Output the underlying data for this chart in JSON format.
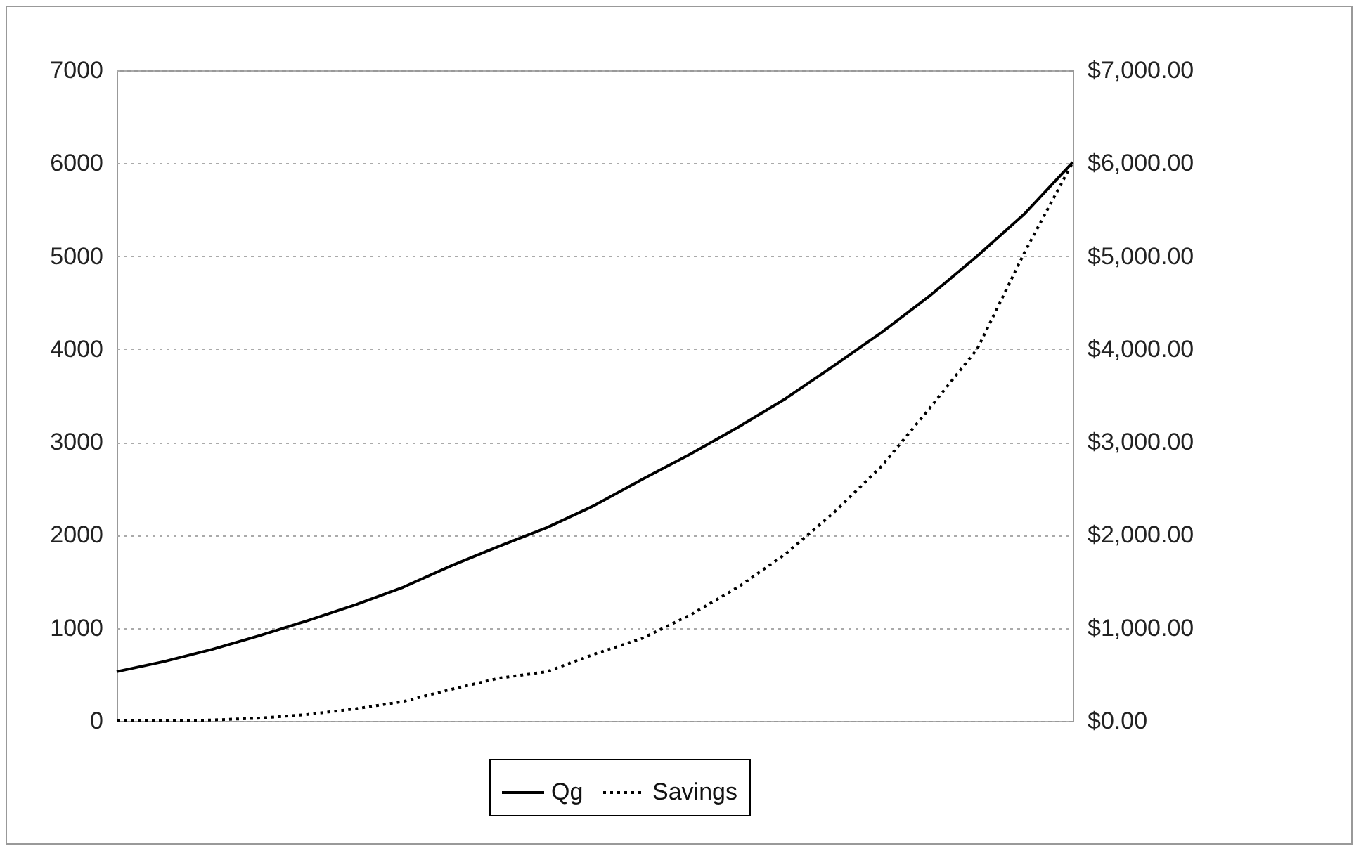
{
  "chart_data": {
    "type": "line",
    "categories": [
      null,
      null,
      null,
      null,
      null,
      null,
      null,
      null,
      null,
      null,
      null,
      null,
      null,
      null,
      null,
      null,
      null,
      null,
      null,
      null,
      null
    ],
    "series": [
      {
        "name": "Qg",
        "color": "#000000",
        "line_style": "solid",
        "values": [
          530,
          640,
          770,
          920,
          1080,
          1250,
          1440,
          1670,
          1880,
          2080,
          2320,
          2600,
          2870,
          3160,
          3470,
          3820,
          4180,
          4570,
          5000,
          5460,
          6010
        ]
      },
      {
        "name": "Savings",
        "color": "#000000",
        "line_style": "dotted",
        "axis": "y2",
        "values": [
          0,
          0,
          10,
          30,
          70,
          130,
          210,
          340,
          460,
          530,
          720,
          890,
          1140,
          1440,
          1800,
          2240,
          2740,
          3360,
          4000,
          5050,
          6010
        ]
      }
    ],
    "ylim": [
      0,
      7000
    ],
    "yticks": [
      0,
      1000,
      2000,
      3000,
      4000,
      5000,
      6000,
      7000
    ],
    "y2lim": [
      0,
      7000
    ],
    "y2ticks": [
      {
        "value": 0,
        "label": "$0.00"
      },
      {
        "value": 1000,
        "label": "$1,000.00"
      },
      {
        "value": 2000,
        "label": "$2,000.00"
      },
      {
        "value": 3000,
        "label": "$3,000.00"
      },
      {
        "value": 4000,
        "label": "$4,000.00"
      },
      {
        "value": 5000,
        "label": "$5,000.00"
      },
      {
        "value": 6000,
        "label": "$6,000.00"
      },
      {
        "value": 7000,
        "label": "$7,000.00"
      }
    ],
    "grid": "y",
    "legend": "bottom",
    "marker": "none"
  }
}
